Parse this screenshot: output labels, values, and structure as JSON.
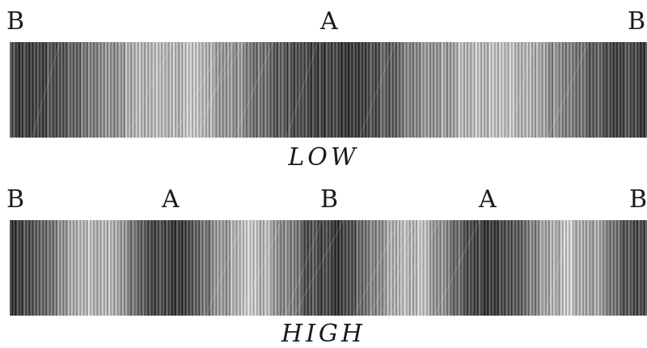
{
  "low": {
    "caption": "LOW",
    "markers": [
      "B",
      "A",
      "B"
    ]
  },
  "high": {
    "caption": "HIGH",
    "markers": [
      "B",
      "A",
      "B",
      "A",
      "B"
    ]
  }
}
